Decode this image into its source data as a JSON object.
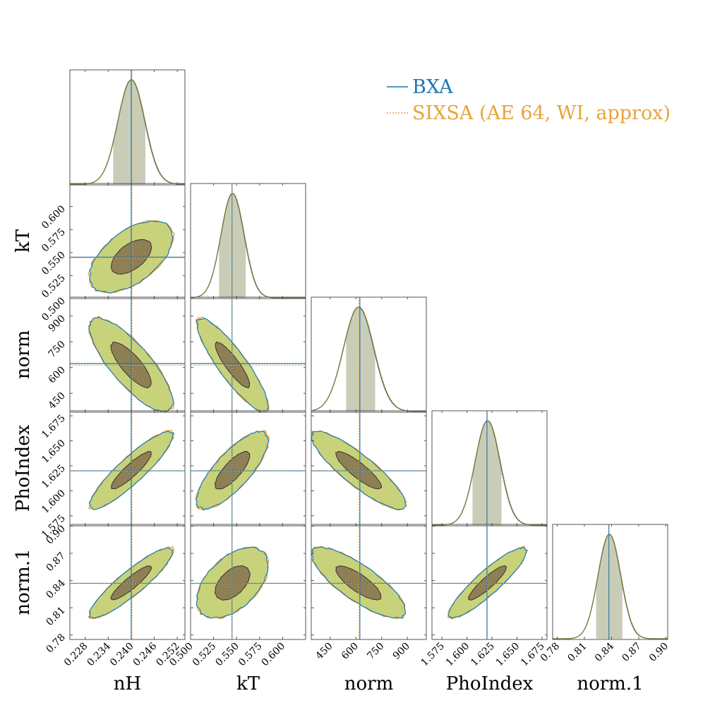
{
  "colors": {
    "bxa": "#1f77b4",
    "sixsa": "#e8a33a",
    "fill_outer": "#c8d27a",
    "fill_inner": "#8f7f55",
    "hist_band": "#c9cdb8",
    "axis": "#555555"
  },
  "chart_data": {
    "type": "corner",
    "parameters": [
      {
        "name": "nH",
        "label": "nH",
        "truth": 0.24,
        "sixsa_truth": 0.2402,
        "range": [
          0.224,
          0.254
        ],
        "ticks": [
          0.228,
          0.234,
          0.24,
          0.246,
          0.252
        ],
        "tick_labels": [
          "0.228",
          "0.234",
          "0.240",
          "0.246",
          "0.252"
        ],
        "mean": 0.24,
        "sigma": 0.0035,
        "band": [
          0.2353,
          0.2437
        ]
      },
      {
        "name": "kT",
        "label": "kT",
        "truth": 0.545,
        "sixsa_truth": 0.545,
        "range": [
          0.5,
          0.625
        ],
        "ticks": [
          0.5,
          0.525,
          0.55,
          0.575,
          0.6
        ],
        "tick_labels": [
          "0.500",
          "0.525",
          "0.550",
          "0.575",
          "0.600"
        ],
        "mean": 0.5455,
        "sigma": 0.0125,
        "band": [
          0.531,
          0.56
        ]
      },
      {
        "name": "norm",
        "label": "norm",
        "truth": 623,
        "sixsa_truth": 618,
        "range": [
          340,
          1010
        ],
        "ticks": [
          450,
          600,
          750,
          900
        ],
        "tick_labels": [
          "450",
          "600",
          "750",
          "900"
        ],
        "mean": 615,
        "sigma": 88,
        "band": [
          543,
          712
        ]
      },
      {
        "name": "PhoIndex",
        "label": "PhoIndex",
        "truth": 1.62,
        "sixsa_truth": 1.6205,
        "range": [
          1.565,
          1.68
        ],
        "ticks": [
          1.575,
          1.6,
          1.625,
          1.65,
          1.675
        ],
        "tick_labels": [
          "1.575",
          "1.600",
          "1.625",
          "1.650",
          "1.675"
        ],
        "mean": 1.6205,
        "sigma": 0.0125,
        "band": [
          1.6055,
          1.6345
        ]
      },
      {
        "name": "norm.1",
        "label": "norm.1",
        "truth": 0.837,
        "sixsa_truth": 0.8375,
        "range": [
          0.775,
          0.902
        ],
        "ticks": [
          0.78,
          0.81,
          0.84,
          0.87,
          0.9
        ],
        "tick_labels": [
          "0.78",
          "0.81",
          "0.84",
          "0.87",
          "0.90"
        ],
        "mean": 0.8375,
        "sigma": 0.0125,
        "band": [
          0.823,
          0.852
        ]
      }
    ],
    "correlations": [
      {
        "pair": [
          "nH",
          "kT"
        ],
        "rho": 0.55
      },
      {
        "pair": [
          "nH",
          "norm"
        ],
        "rho": -0.8
      },
      {
        "pair": [
          "kT",
          "norm"
        ],
        "rho": -0.88
      },
      {
        "pair": [
          "nH",
          "PhoIndex"
        ],
        "rho": 0.9
      },
      {
        "pair": [
          "kT",
          "PhoIndex"
        ],
        "rho": 0.78
      },
      {
        "pair": [
          "norm",
          "PhoIndex"
        ],
        "rho": -0.87
      },
      {
        "pair": [
          "nH",
          "norm.1"
        ],
        "rho": 0.9
      },
      {
        "pair": [
          "kT",
          "norm.1"
        ],
        "rho": 0.5
      },
      {
        "pair": [
          "norm",
          "norm.1"
        ],
        "rho": -0.8
      },
      {
        "pair": [
          "PhoIndex",
          "norm.1"
        ],
        "rho": 0.9
      }
    ],
    "contour_levels_sigma": [
      1.5,
      3.1
    ],
    "legend": [
      {
        "name": "BXA",
        "style": "solid"
      },
      {
        "name": "SIXSA (AE 64, WI, approx)",
        "style": "dashed"
      }
    ],
    "legend_position": "top-right"
  }
}
